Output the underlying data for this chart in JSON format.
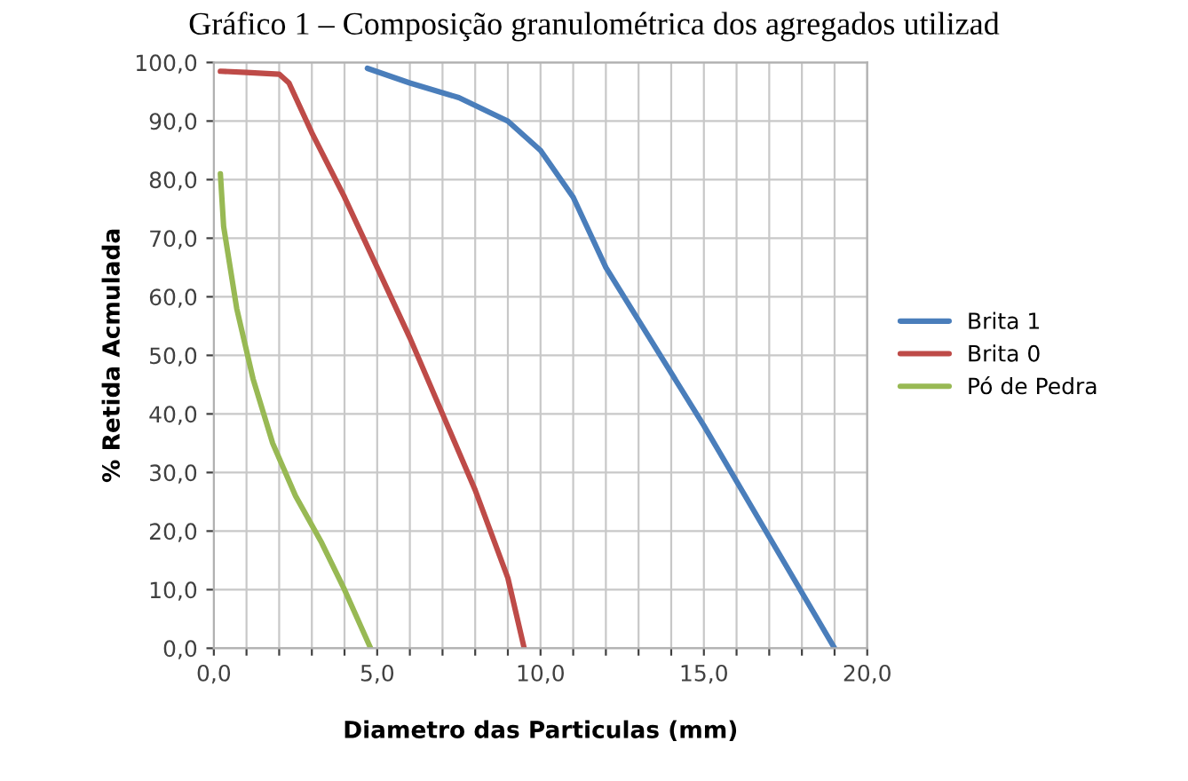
{
  "chart_data": {
    "type": "line",
    "title": "Gráfico 1 – Composição granulométrica dos agregados utilizad",
    "xlabel": "Diametro das Particulas (mm)",
    "ylabel": "% Retida Acmulada",
    "series": [
      {
        "name": "Brita 1",
        "color": "#4a7ebb",
        "x": [
          4.7,
          6,
          7.5,
          9,
          10,
          11,
          12,
          13,
          15,
          17,
          19
        ],
        "values": [
          99,
          96.5,
          94,
          90,
          85,
          77,
          65,
          56,
          38,
          19,
          0
        ]
      },
      {
        "name": "Brita 0",
        "color": "#be4b48",
        "x": [
          0.2,
          1,
          2,
          2.3,
          3,
          4,
          5,
          6,
          7,
          8,
          9,
          9.5
        ],
        "values": [
          98.5,
          98.3,
          98,
          96.5,
          88,
          77,
          65,
          53,
          40,
          27,
          12,
          0
        ]
      },
      {
        "name": "Pó de Pedra",
        "color": "#98b954",
        "x": [
          0.2,
          0.3,
          0.7,
          1.2,
          1.8,
          2.5,
          3.3,
          4,
          4.8
        ],
        "values": [
          81,
          72,
          58,
          46,
          35,
          26,
          18,
          10,
          0
        ]
      }
    ],
    "xlim": [
      0,
      20
    ],
    "ylim": [
      0,
      100
    ],
    "xticks": [
      {
        "value": 0,
        "label": "0,0"
      },
      {
        "value": 1,
        "label": null
      },
      {
        "value": 2,
        "label": null
      },
      {
        "value": 3,
        "label": null
      },
      {
        "value": 4,
        "label": null
      },
      {
        "value": 5,
        "label": "5,0"
      },
      {
        "value": 6,
        "label": null
      },
      {
        "value": 7,
        "label": null
      },
      {
        "value": 8,
        "label": null
      },
      {
        "value": 9,
        "label": null
      },
      {
        "value": 10,
        "label": "10,0"
      },
      {
        "value": 11,
        "label": null
      },
      {
        "value": 12,
        "label": null
      },
      {
        "value": 13,
        "label": null
      },
      {
        "value": 14,
        "label": null
      },
      {
        "value": 15,
        "label": "15,0"
      },
      {
        "value": 16,
        "label": null
      },
      {
        "value": 17,
        "label": null
      },
      {
        "value": 18,
        "label": null
      },
      {
        "value": 19,
        "label": null
      },
      {
        "value": 20,
        "label": "20,0"
      }
    ],
    "yticks": [
      {
        "value": 0,
        "label": "0,0"
      },
      {
        "value": 10,
        "label": "10,0"
      },
      {
        "value": 20,
        "label": "20,0"
      },
      {
        "value": 30,
        "label": "30,0"
      },
      {
        "value": 40,
        "label": "40,0"
      },
      {
        "value": 50,
        "label": "50,0"
      },
      {
        "value": 60,
        "label": "60,0"
      },
      {
        "value": 70,
        "label": "70,0"
      },
      {
        "value": 80,
        "label": "80,0"
      },
      {
        "value": 90,
        "label": "90,0"
      },
      {
        "value": 100,
        "label": "100,0"
      }
    ],
    "grid": true,
    "legend": "right",
    "marker": "none",
    "line_style": "solid"
  }
}
